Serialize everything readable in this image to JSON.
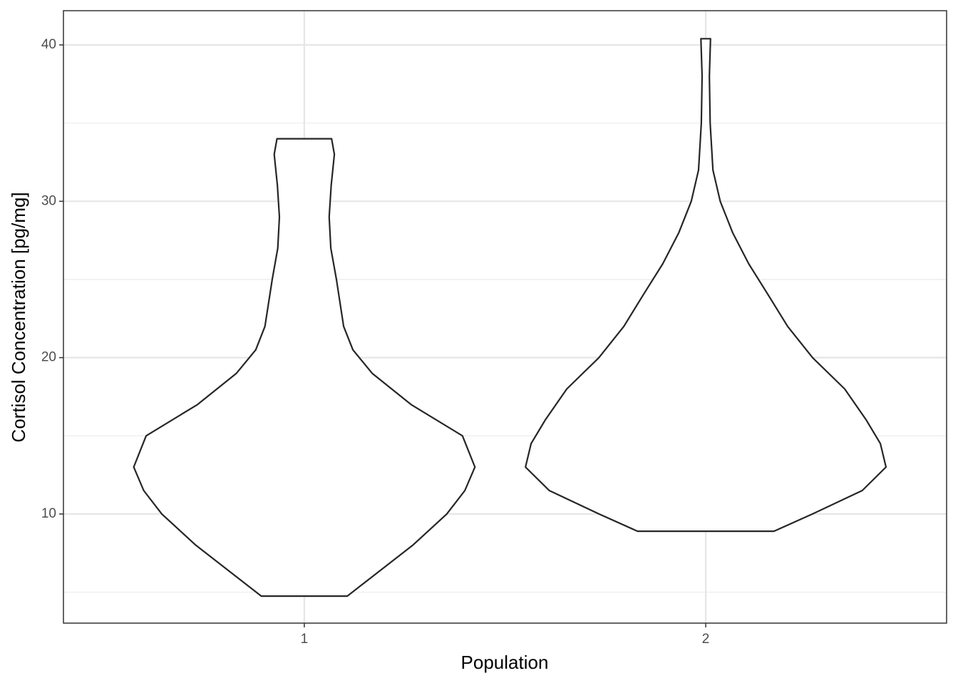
{
  "chart_data": {
    "type": "violin",
    "x_label": "Population",
    "y_label": "Cortisol Concentration [pg/mg]",
    "categories": [
      "1",
      "2"
    ],
    "xlim": [
      0.4,
      2.6
    ],
    "ylim": [
      3.02,
      42.19
    ],
    "yticks": [
      10,
      20,
      30,
      40
    ],
    "minor_yticks": [
      5,
      15,
      25,
      35
    ],
    "grid": true,
    "color": "#262626",
    "series": [
      {
        "y": [
          4.75,
          6,
          8,
          10,
          11.5,
          13,
          15,
          17,
          19,
          20.5,
          22,
          25,
          27,
          29,
          31,
          33,
          34
        ],
        "width": [
          0.107,
          0.17,
          0.27,
          0.355,
          0.4,
          0.425,
          0.394,
          0.266,
          0.169,
          0.121,
          0.098,
          0.08,
          0.066,
          0.062,
          0.067,
          0.075,
          0.068
        ]
      },
      {
        "y": [
          8.9,
          10,
          11.5,
          13,
          14.5,
          16,
          18,
          20,
          22,
          24,
          26,
          28,
          30,
          32,
          35,
          38,
          40.4
        ],
        "width": [
          0.17,
          0.266,
          0.39,
          0.449,
          0.435,
          0.4,
          0.346,
          0.266,
          0.204,
          0.156,
          0.107,
          0.067,
          0.036,
          0.018,
          0.011,
          0.009,
          0.012
        ]
      }
    ]
  }
}
